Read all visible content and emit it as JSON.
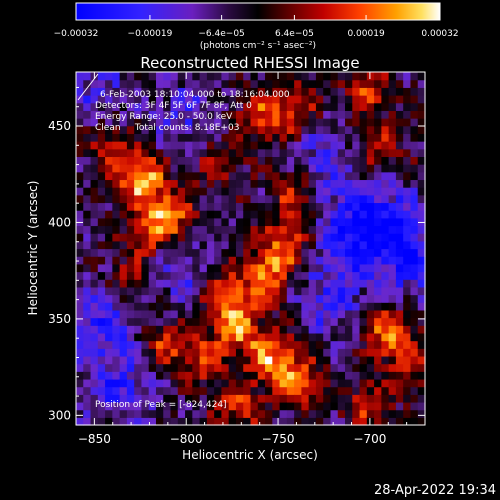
{
  "chart_data": {
    "type": "heatmap",
    "title": "Reconstructed RHESSI Image",
    "xlabel": "Heliocentric X (arcsec)",
    "ylabel": "Heliocentric Y (arcsec)",
    "xlim": [
      -860,
      -670
    ],
    "ylim": [
      295,
      478
    ],
    "xticks": [
      -850,
      -800,
      -750,
      -700
    ],
    "xtick_labels": [
      "−850",
      "−800",
      "−750",
      "−700"
    ],
    "yticks": [
      300,
      350,
      400,
      450
    ],
    "ytick_labels": [
      "300",
      "350",
      "400",
      "450"
    ],
    "colorbar": {
      "min": -0.00032,
      "max": 0.00032,
      "ticks": [
        -0.00032,
        -0.00019,
        -6.4e-05,
        6.4e-05,
        0.00019,
        0.00032
      ],
      "tick_labels": [
        "−0.00032",
        "−0.00019",
        "−6.4e−05",
        "6.4e−05",
        "0.00019",
        "0.00032"
      ],
      "units": "(photons cm⁻² s⁻¹ asec⁻²)",
      "colormap": "blue-purple-black-red-orange-yellow-white"
    },
    "annotations": [
      "6-Feb-2003 18:10:04.000 to 18:16:04.000",
      "Detectors: 3F 4F 5F 6F 7F 8F, Att 0",
      "Energy Range: 25.0 - 50.0 keV",
      "Clean     Total counts: 8.18E+03"
    ],
    "peak_label": "Position of Peak = [-824,424]",
    "peak": [
      -824,
      424
    ],
    "grid": false,
    "legend": "none",
    "hotspots": [
      {
        "x": -824,
        "y": 424,
        "v": 1.0
      },
      {
        "x": -808,
        "y": 405,
        "v": 0.75
      },
      {
        "x": -820,
        "y": 395,
        "v": 0.55
      },
      {
        "x": -840,
        "y": 438,
        "v": 0.5
      },
      {
        "x": -782,
        "y": 432,
        "v": 0.45
      },
      {
        "x": -760,
        "y": 455,
        "v": 0.55
      },
      {
        "x": -742,
        "y": 460,
        "v": 0.6
      },
      {
        "x": -738,
        "y": 415,
        "v": 0.55
      },
      {
        "x": -745,
        "y": 390,
        "v": 0.7
      },
      {
        "x": -755,
        "y": 372,
        "v": 0.8
      },
      {
        "x": -778,
        "y": 362,
        "v": 0.7
      },
      {
        "x": -770,
        "y": 345,
        "v": 0.75
      },
      {
        "x": -752,
        "y": 330,
        "v": 0.8
      },
      {
        "x": -738,
        "y": 318,
        "v": 0.7
      },
      {
        "x": -790,
        "y": 330,
        "v": 0.55
      },
      {
        "x": -812,
        "y": 338,
        "v": 0.6
      },
      {
        "x": -830,
        "y": 370,
        "v": 0.5
      },
      {
        "x": -700,
        "y": 470,
        "v": 0.55
      },
      {
        "x": -694,
        "y": 440,
        "v": 0.5
      },
      {
        "x": -690,
        "y": 345,
        "v": 0.65
      },
      {
        "x": -678,
        "y": 330,
        "v": 0.55
      },
      {
        "x": -700,
        "y": 305,
        "v": 0.5
      },
      {
        "x": -770,
        "y": 305,
        "v": 0.55
      }
    ],
    "coldspots": [
      {
        "x": -690,
        "y": 400,
        "v": -0.6
      },
      {
        "x": -710,
        "y": 395,
        "v": -0.5
      },
      {
        "x": -678,
        "y": 380,
        "v": -0.5
      },
      {
        "x": -845,
        "y": 350,
        "v": -0.55
      },
      {
        "x": -835,
        "y": 315,
        "v": -0.5
      },
      {
        "x": -720,
        "y": 360,
        "v": -0.45
      },
      {
        "x": -800,
        "y": 455,
        "v": -0.35
      },
      {
        "x": -722,
        "y": 430,
        "v": -0.4
      },
      {
        "x": -805,
        "y": 375,
        "v": -0.35
      },
      {
        "x": -850,
        "y": 470,
        "v": -0.3
      }
    ]
  },
  "footer": {
    "timestamp": "28-Apr-2022 19:34"
  }
}
